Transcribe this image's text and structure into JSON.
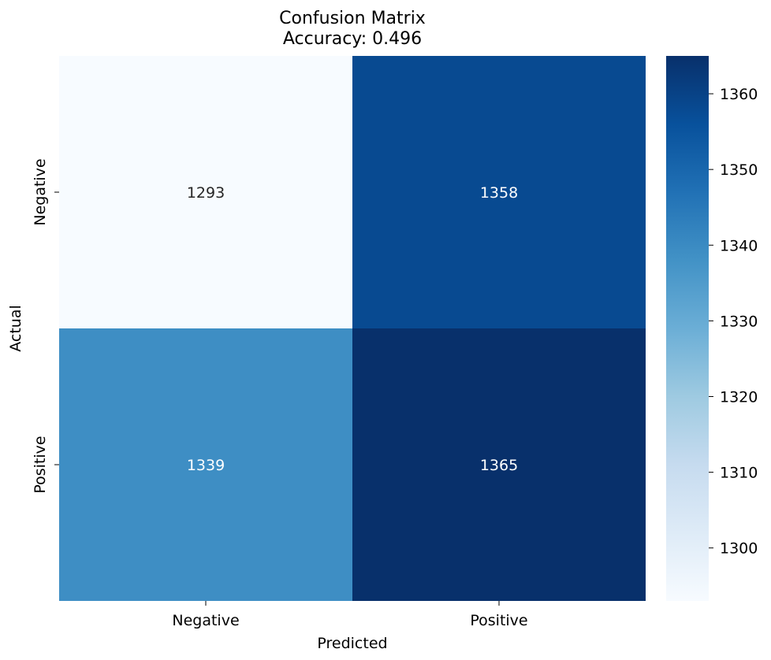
{
  "chart_data": {
    "type": "heatmap",
    "title": "Confusion Matrix",
    "subtitle": "Accuracy: 0.496",
    "xlabel": "Predicted",
    "ylabel": "Actual",
    "x_categories": [
      "Negative",
      "Positive"
    ],
    "y_categories": [
      "Negative",
      "Positive"
    ],
    "values": [
      [
        1293,
        1358
      ],
      [
        1339,
        1365
      ]
    ],
    "colormap": "Blues",
    "colorbar": {
      "range": [
        1293,
        1365
      ],
      "ticks": [
        1300,
        1310,
        1320,
        1330,
        1340,
        1350,
        1360
      ]
    },
    "colors": {
      "cell_low": "#f7fbff",
      "cell_high": "#08306b",
      "text_dark": "#262626",
      "text_light": "#ffffff"
    }
  }
}
